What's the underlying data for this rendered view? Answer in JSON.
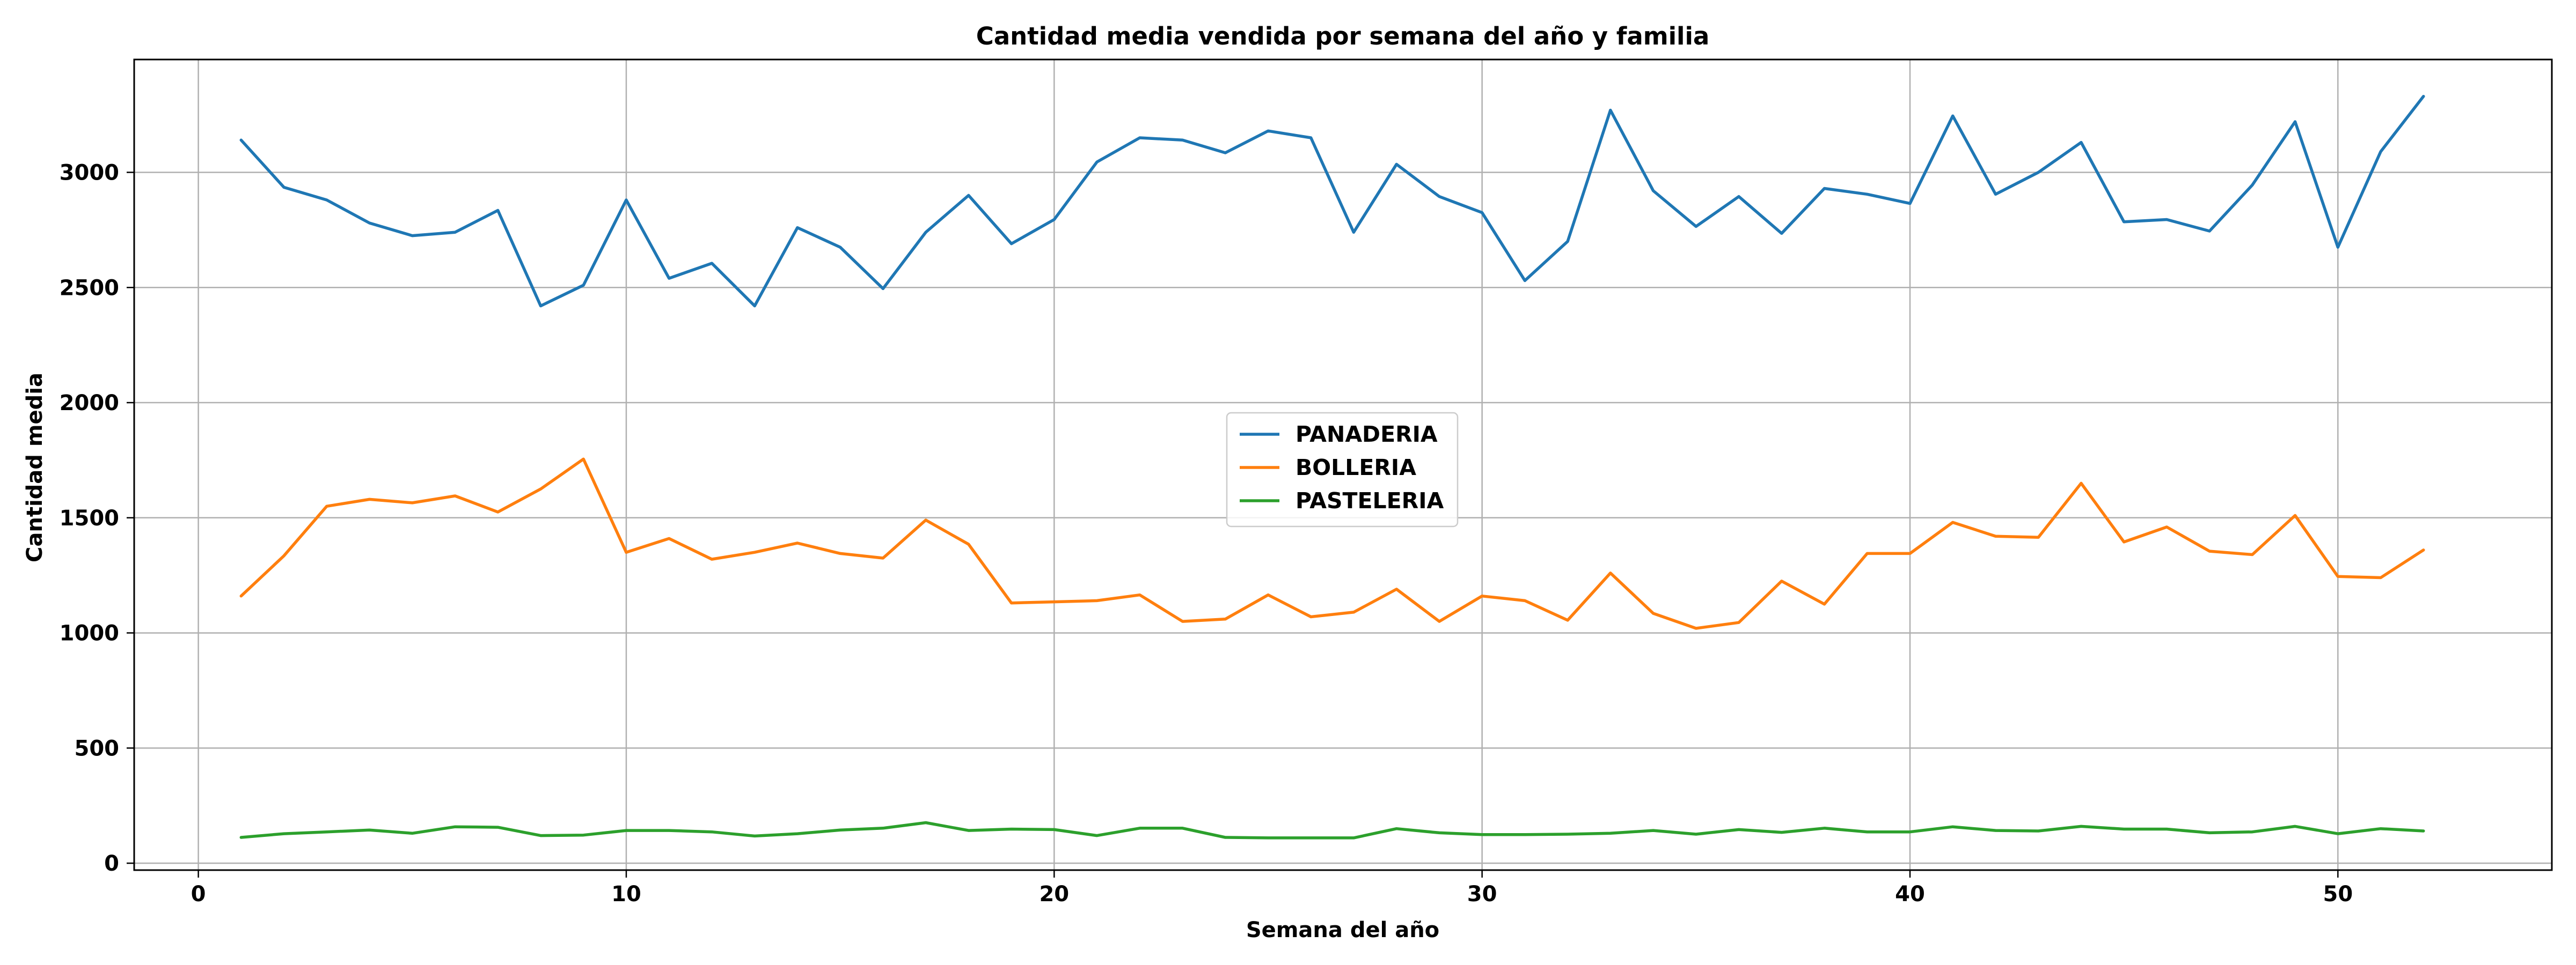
{
  "chart_data": {
    "type": "line",
    "title": "Cantidad media vendida por semana del año y familia",
    "xlabel": "Semana del año",
    "ylabel": "Cantidad media",
    "xlim": [
      -1.5,
      55
    ],
    "ylim": [
      -30,
      3490
    ],
    "xticks": [
      0,
      10,
      20,
      30,
      40,
      50
    ],
    "yticks": [
      0,
      500,
      1000,
      1500,
      2000,
      2500,
      3000
    ],
    "grid": true,
    "legend_placement": "center",
    "x": [
      1,
      2,
      3,
      4,
      5,
      6,
      7,
      8,
      9,
      10,
      11,
      12,
      13,
      14,
      15,
      16,
      17,
      18,
      19,
      20,
      21,
      22,
      23,
      24,
      25,
      26,
      27,
      28,
      29,
      30,
      31,
      32,
      33,
      34,
      35,
      36,
      37,
      38,
      39,
      40,
      41,
      42,
      43,
      44,
      45,
      46,
      47,
      48,
      49,
      50,
      51,
      52
    ],
    "series": [
      {
        "name": "PANADERIA",
        "color": "#1f77b4",
        "values": [
          3140,
          2935,
          2880,
          2780,
          2725,
          2740,
          2835,
          2420,
          2510,
          2880,
          2540,
          2605,
          2420,
          2760,
          2675,
          2495,
          2740,
          2900,
          2690,
          2795,
          3045,
          3150,
          3140,
          3085,
          3180,
          3150,
          2740,
          3035,
          2895,
          2825,
          2530,
          2700,
          3270,
          2920,
          2765,
          2895,
          2735,
          2930,
          2905,
          2865,
          3245,
          2905,
          3000,
          3130,
          2785,
          2795,
          2745,
          2945,
          3220,
          2675,
          3090,
          3330
        ]
      },
      {
        "name": "BOLLERIA",
        "color": "#ff7f0e",
        "values": [
          1160,
          1335,
          1550,
          1580,
          1565,
          1595,
          1525,
          1625,
          1755,
          1350,
          1410,
          1320,
          1350,
          1390,
          1345,
          1325,
          1490,
          1385,
          1130,
          1135,
          1140,
          1165,
          1050,
          1060,
          1165,
          1070,
          1090,
          1190,
          1050,
          1160,
          1140,
          1055,
          1260,
          1085,
          1020,
          1045,
          1225,
          1125,
          1345,
          1345,
          1480,
          1420,
          1415,
          1650,
          1395,
          1460,
          1355,
          1340,
          1510,
          1245,
          1240,
          1360
        ]
      },
      {
        "name": "PASTELERIA",
        "color": "#2ca02c",
        "values": [
          112,
          128,
          136,
          144,
          130,
          158,
          156,
          120,
          122,
          142,
          142,
          136,
          118,
          128,
          144,
          152,
          176,
          142,
          148,
          146,
          120,
          152,
          152,
          112,
          110,
          110,
          110,
          150,
          132,
          124,
          124,
          126,
          130,
          142,
          126,
          146,
          134,
          152,
          136,
          136,
          158,
          142,
          140,
          160,
          148,
          148,
          132,
          136,
          160,
          128,
          150,
          140
        ]
      }
    ]
  }
}
